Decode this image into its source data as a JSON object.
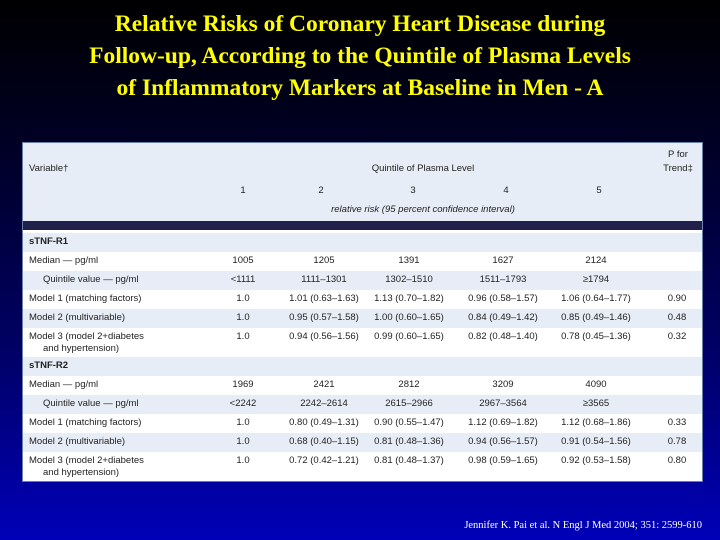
{
  "title_lines": [
    "Relative Risks of Coronary Heart Disease during",
    "Follow-up, According to the Quintile of Plasma Levels",
    "of Inflammatory Markers at Baseline in Men - A"
  ],
  "table": {
    "header": {
      "variable": "Variable†",
      "quintile_title": "Quintile of Plasma Level",
      "quintiles": [
        "1",
        "2",
        "3",
        "4",
        "5"
      ],
      "p_trend_line1": "P for",
      "p_trend_line2": "Trend‡",
      "subtitle": "relative risk (95 percent confidence interval)"
    },
    "rows": [
      {
        "label": "sTNF-R1",
        "section": true,
        "q1": "",
        "q2": "",
        "q3": "",
        "q4": "",
        "q5": "",
        "p": ""
      },
      {
        "label": "Median — pg/ml",
        "q1": "1005",
        "q2": "1205",
        "q3": "1391",
        "q4": "1627",
        "q5": "2124",
        "p": ""
      },
      {
        "label": "Quintile value — pg/ml",
        "indent": true,
        "q1": "<1111",
        "q2": "1111–1301",
        "q3": "1302–1510",
        "q4": "1511–1793",
        "q5": "≥1794",
        "p": ""
      },
      {
        "label": "Model 1 (matching factors)",
        "q1": "1.0",
        "q2": "1.01 (0.63–1.63)",
        "q3": "1.13 (0.70–1.82)",
        "q4": "0.96 (0.58–1.57)",
        "q5": "1.06 (0.64–1.77)",
        "p": "0.90"
      },
      {
        "label": "Model 2 (multivariable)",
        "q1": "1.0",
        "q2": "0.95 (0.57–1.58)",
        "q3": "1.00 (0.60–1.65)",
        "q4": "0.84 (0.49–1.42)",
        "q5": "0.85 (0.49–1.46)",
        "p": "0.48"
      },
      {
        "label": "Model 3 (model 2+diabetes",
        "label2": "and hypertension)",
        "q1": "1.0",
        "q2": "0.94 (0.56–1.56)",
        "q3": "0.99 (0.60–1.65)",
        "q4": "0.82 (0.48–1.40)",
        "q5": "0.78 (0.45–1.36)",
        "p": "0.32"
      },
      {
        "label": "sTNF-R2",
        "section": true,
        "q1": "",
        "q2": "",
        "q3": "",
        "q4": "",
        "q5": "",
        "p": ""
      },
      {
        "label": "Median — pg/ml",
        "q1": "1969",
        "q2": "2421",
        "q3": "2812",
        "q4": "3209",
        "q5": "4090",
        "p": ""
      },
      {
        "label": "Quintile value — pg/ml",
        "indent": true,
        "q1": "<2242",
        "q2": "2242–2614",
        "q3": "2615–2966",
        "q4": "2967–3564",
        "q5": "≥3565",
        "p": ""
      },
      {
        "label": "Model 1 (matching factors)",
        "q1": "1.0",
        "q2": "0.80 (0.49–1.31)",
        "q3": "0.90 (0.55–1.47)",
        "q4": "1.12 (0.69–1.82)",
        "q5": "1.12 (0.68–1.86)",
        "p": "0.33"
      },
      {
        "label": "Model 2 (multivariable)",
        "q1": "1.0",
        "q2": "0.68 (0.40–1.15)",
        "q3": "0.81 (0.48–1.36)",
        "q4": "0.94 (0.56–1.57)",
        "q5": "0.91 (0.54–1.56)",
        "p": "0.78"
      },
      {
        "label": "Model 3 (model 2+diabetes",
        "label2": "and hypertension)",
        "q1": "1.0",
        "q2": "0.72 (0.42–1.21)",
        "q3": "0.81 (0.48–1.37)",
        "q4": "0.98 (0.59–1.65)",
        "q5": "0.92 (0.53–1.58)",
        "p": "0.80"
      }
    ]
  },
  "citation": "Jennifer K. Pai et al. N Engl J Med 2004; 351: 2599-610",
  "colors": {
    "title": "#ffff00",
    "panel_shade": "#e7edf6",
    "header_bar": "#20204a",
    "background_top": "#000000",
    "background_bottom": "#0000b8"
  }
}
